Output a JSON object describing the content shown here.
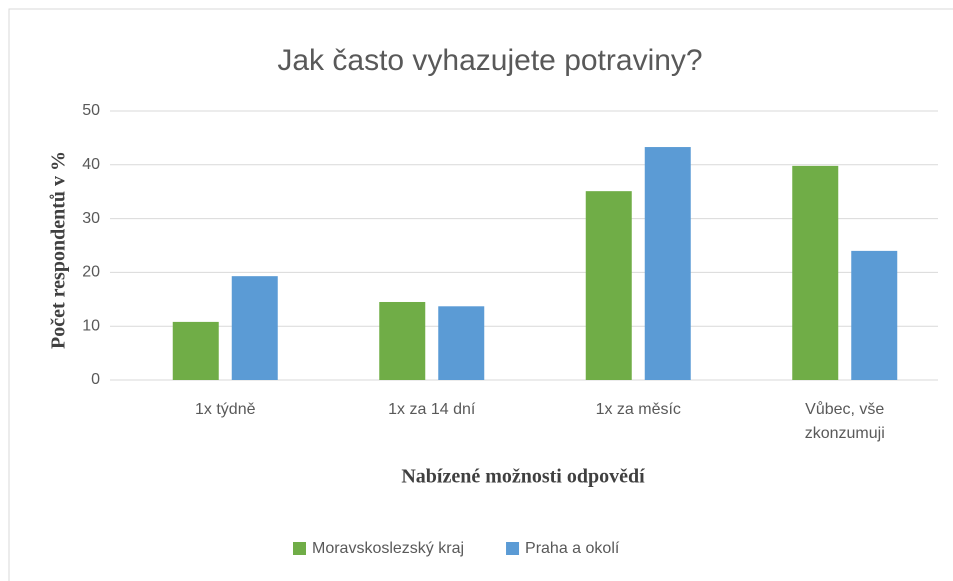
{
  "chart_data": {
    "type": "bar",
    "title": "Jak často vyhazujete potraviny?",
    "x_label": "Nabízené možnosti odpovědí",
    "y_label": "Počet respondentů v %",
    "categories": [
      "1x týdně",
      "1x za 14 dní",
      "1x za měsíc",
      "Vůbec, vše zkonzumuji"
    ],
    "series": [
      {
        "name": "Moravskoslezský kraj",
        "color": "#70ad47",
        "values": [
          10.8,
          14.5,
          35.1,
          39.8
        ]
      },
      {
        "name": "Praha a okolí",
        "color": "#5b9bd5",
        "values": [
          19.3,
          13.7,
          43.3,
          24.0
        ]
      }
    ],
    "ylim": [
      0,
      50
    ],
    "yticks": [
      0,
      10,
      20,
      30,
      40,
      50
    ],
    "grid": true,
    "legend": "bottom"
  }
}
